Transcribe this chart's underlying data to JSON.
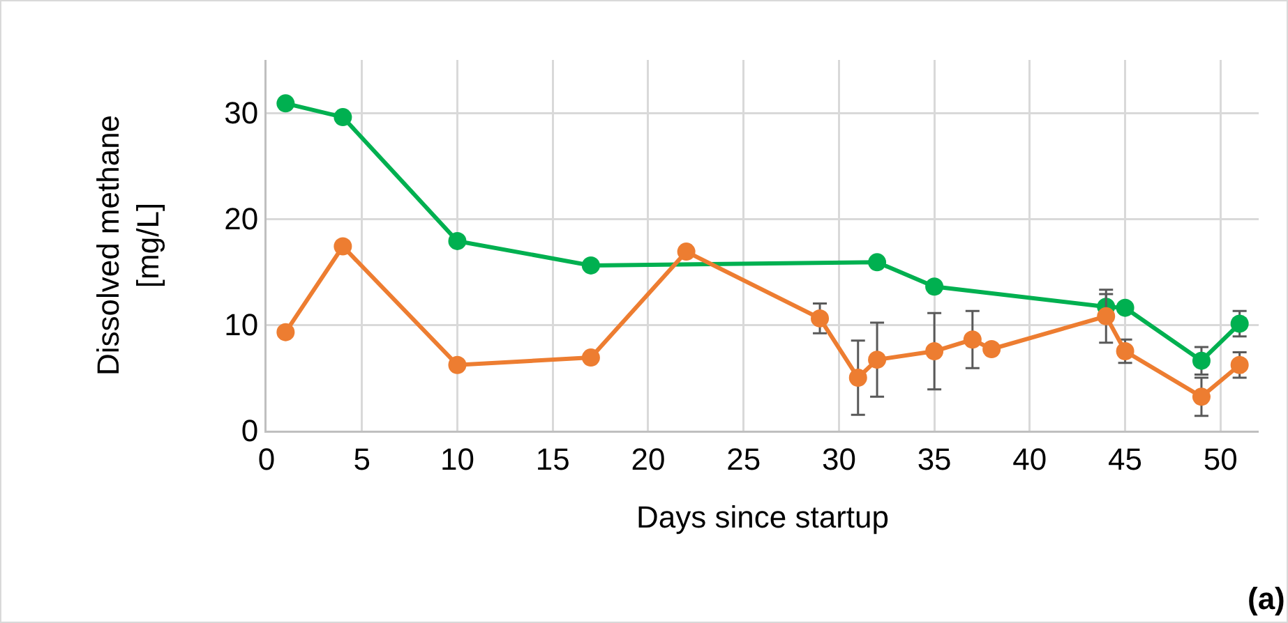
{
  "chart_data": {
    "type": "line",
    "xlabel": "Days since startup",
    "ylabel": "Dissolved methane\n[mg/L]",
    "annotations": [
      "(a)"
    ],
    "xlim": [
      0,
      52
    ],
    "xticks": [
      0,
      5,
      10,
      15,
      20,
      25,
      30,
      35,
      40,
      45,
      50
    ],
    "ylim": [
      0,
      35
    ],
    "yticks": [
      0,
      10,
      20,
      30
    ],
    "grid": true,
    "marker": "circle",
    "line_style": "solid",
    "series": [
      {
        "color": "#00b050",
        "x": [
          1,
          4,
          10,
          17,
          32,
          35,
          44,
          45,
          49,
          51
        ],
        "values": [
          30.9,
          29.6,
          17.9,
          15.6,
          15.9,
          13.6,
          11.7,
          11.6,
          6.6,
          10.1
        ],
        "errors": [
          null,
          null,
          null,
          null,
          null,
          null,
          1.2,
          null,
          1.3,
          1.2
        ]
      },
      {
        "color": "#ed7d31",
        "x": [
          1,
          4,
          10,
          17,
          22,
          29,
          31,
          32,
          35,
          37,
          38,
          44,
          45,
          49,
          51
        ],
        "values": [
          9.3,
          17.4,
          6.2,
          6.9,
          16.9,
          10.6,
          5.0,
          6.7,
          7.5,
          8.6,
          7.7,
          10.8,
          7.5,
          3.2,
          6.2
        ],
        "errors": [
          null,
          null,
          null,
          null,
          null,
          1.4,
          3.5,
          3.5,
          3.6,
          2.7,
          null,
          2.5,
          1.1,
          1.8,
          1.2
        ]
      }
    ]
  }
}
